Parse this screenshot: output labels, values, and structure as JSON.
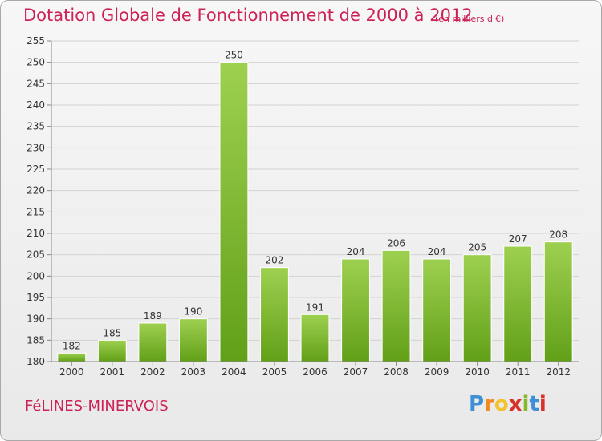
{
  "title": "Dotation Globale de Fonctionnement de 2000 à 2012",
  "subtitle": "(en milliers d'€)",
  "commune": "FéLINES-MINERVOIS",
  "logo": {
    "letters": [
      "P",
      "r",
      "o",
      "x",
      "i",
      "t",
      "i"
    ],
    "colors": [
      "#3f8fd6",
      "#f08a1e",
      "#f2c230",
      "#d9302a",
      "#86b82e",
      "#3f8fd6",
      "#d9302a"
    ]
  },
  "colors": {
    "bar_light": "#9ed050",
    "bar_dark": "#62a018",
    "title": "#cc2255"
  },
  "chart_data": {
    "type": "bar",
    "categories": [
      "2000",
      "2001",
      "2002",
      "2003",
      "2004",
      "2005",
      "2006",
      "2007",
      "2008",
      "2009",
      "2010",
      "2011",
      "2012"
    ],
    "values": [
      182,
      185,
      189,
      190,
      250,
      202,
      191,
      204,
      206,
      204,
      205,
      207,
      208
    ],
    "ylim": [
      180,
      255
    ],
    "yticks": [
      180,
      185,
      190,
      195,
      200,
      205,
      210,
      215,
      220,
      225,
      230,
      235,
      240,
      245,
      250,
      255
    ],
    "grid": true
  }
}
